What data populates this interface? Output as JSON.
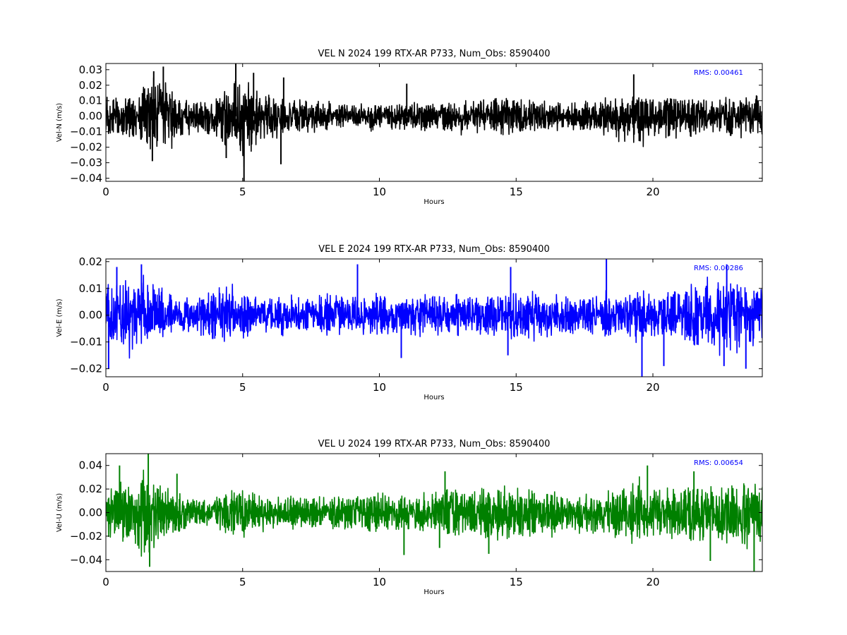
{
  "chart_data": [
    {
      "type": "line",
      "title": "VEL N 2024 199 RTX-AR  P733, Num_Obs: 8590400",
      "xlabel": "Hours",
      "ylabel": "Vel-N (m/s)",
      "xlim": [
        0,
        24
      ],
      "ylim": [
        -0.042,
        0.034
      ],
      "x_ticks": [
        0,
        5,
        10,
        15,
        20
      ],
      "x_tick_labels": [
        "0",
        "5",
        "10",
        "15",
        "20"
      ],
      "y_ticks": [
        -0.04,
        -0.03,
        -0.02,
        -0.01,
        0.0,
        0.01,
        0.02,
        0.03
      ],
      "y_tick_labels": [
        "−0.04",
        "−0.03",
        "−0.02",
        "−0.01",
        "0.00",
        "0.01",
        "0.02",
        "0.03"
      ],
      "annotation": "RMS:  0.00461",
      "annotation_color": "#0000ff",
      "color": "#000000",
      "grid": false,
      "envelope": {
        "hours": [
          0,
          0.5,
          1.0,
          1.5,
          1.8,
          2.0,
          2.3,
          2.7,
          3.0,
          3.5,
          4.0,
          4.3,
          4.6,
          4.8,
          5.0,
          5.2,
          5.4,
          5.7,
          6.0,
          6.5,
          7.0,
          8.0,
          9.0,
          10.0,
          11.0,
          12.0,
          13.0,
          14.0,
          14.5,
          15.0,
          16.0,
          17.0,
          17.5,
          18.0,
          19.0,
          19.5,
          20.0,
          21.0,
          22.0,
          23.0,
          24.0
        ],
        "upper": [
          0.012,
          0.013,
          0.014,
          0.017,
          0.022,
          0.023,
          0.02,
          0.012,
          0.01,
          0.009,
          0.01,
          0.014,
          0.019,
          0.024,
          0.025,
          0.022,
          0.015,
          0.013,
          0.014,
          0.011,
          0.01,
          0.009,
          0.008,
          0.007,
          0.008,
          0.009,
          0.009,
          0.01,
          0.012,
          0.011,
          0.009,
          0.008,
          0.009,
          0.011,
          0.013,
          0.014,
          0.012,
          0.011,
          0.012,
          0.013,
          0.014
        ],
        "lower": [
          -0.012,
          -0.014,
          -0.016,
          -0.019,
          -0.022,
          -0.023,
          -0.02,
          -0.012,
          -0.011,
          -0.01,
          -0.011,
          -0.016,
          -0.022,
          -0.027,
          -0.032,
          -0.028,
          -0.018,
          -0.015,
          -0.014,
          -0.012,
          -0.01,
          -0.009,
          -0.008,
          -0.007,
          -0.008,
          -0.009,
          -0.009,
          -0.01,
          -0.012,
          -0.011,
          -0.009,
          -0.008,
          -0.01,
          -0.012,
          -0.014,
          -0.015,
          -0.013,
          -0.012,
          -0.012,
          -0.013,
          -0.014
        ]
      },
      "spikes": [
        {
          "hour": 2.1,
          "value": 0.032
        },
        {
          "hour": 1.75,
          "value": 0.029
        },
        {
          "hour": 4.75,
          "value": 0.034
        },
        {
          "hour": 5.05,
          "value": -0.042
        },
        {
          "hour": 4.4,
          "value": -0.027
        },
        {
          "hour": 5.4,
          "value": 0.028
        },
        {
          "hour": 6.4,
          "value": -0.031
        },
        {
          "hour": 6.5,
          "value": 0.025
        },
        {
          "hour": 1.7,
          "value": -0.029
        },
        {
          "hour": 19.3,
          "value": 0.027
        },
        {
          "hour": 11.0,
          "value": 0.021
        }
      ]
    },
    {
      "type": "line",
      "title": "VEL E 2024 199 RTX-AR  P733, Num_Obs: 8590400",
      "xlabel": "Hours",
      "ylabel": "Vel-E (m/s)",
      "xlim": [
        0,
        24
      ],
      "ylim": [
        -0.023,
        0.021
      ],
      "x_ticks": [
        0,
        5,
        10,
        15,
        20
      ],
      "x_tick_labels": [
        "0",
        "5",
        "10",
        "15",
        "20"
      ],
      "y_ticks": [
        -0.02,
        -0.01,
        0.0,
        0.01,
        0.02
      ],
      "y_tick_labels": [
        "−0.02",
        "−0.01",
        "0.00",
        "0.01",
        "0.02"
      ],
      "annotation": "RMS:  0.00286",
      "annotation_color": "#0000ff",
      "color": "#0000ff",
      "grid": false,
      "envelope": {
        "hours": [
          0,
          0.5,
          1.0,
          1.5,
          2.0,
          2.3,
          2.7,
          3.0,
          3.5,
          4.0,
          4.5,
          5.0,
          5.5,
          6.0,
          7.0,
          8.0,
          9.0,
          10.0,
          11.0,
          12.0,
          13.0,
          14.0,
          15.0,
          16.0,
          17.0,
          18.0,
          19.0,
          20.0,
          21.0,
          22.0,
          22.5,
          23.0,
          24.0
        ],
        "upper": [
          0.011,
          0.012,
          0.012,
          0.011,
          0.01,
          0.007,
          0.006,
          0.006,
          0.007,
          0.009,
          0.01,
          0.008,
          0.006,
          0.007,
          0.007,
          0.007,
          0.007,
          0.007,
          0.007,
          0.007,
          0.007,
          0.007,
          0.008,
          0.008,
          0.007,
          0.007,
          0.008,
          0.008,
          0.009,
          0.012,
          0.013,
          0.012,
          0.01
        ],
        "lower": [
          -0.011,
          -0.012,
          -0.012,
          -0.011,
          -0.01,
          -0.007,
          -0.006,
          -0.006,
          -0.007,
          -0.009,
          -0.01,
          -0.008,
          -0.006,
          -0.007,
          -0.007,
          -0.007,
          -0.007,
          -0.007,
          -0.007,
          -0.007,
          -0.007,
          -0.007,
          -0.008,
          -0.008,
          -0.007,
          -0.007,
          -0.008,
          -0.008,
          -0.009,
          -0.012,
          -0.013,
          -0.012,
          -0.01
        ]
      },
      "spikes": [
        {
          "hour": 18.3,
          "value": 0.021
        },
        {
          "hour": 19.6,
          "value": -0.023
        },
        {
          "hour": 9.2,
          "value": 0.019
        },
        {
          "hour": 22.7,
          "value": 0.019
        },
        {
          "hour": 14.8,
          "value": 0.018
        },
        {
          "hour": 1.3,
          "value": 0.019
        },
        {
          "hour": 0.1,
          "value": -0.02
        },
        {
          "hour": 20.4,
          "value": -0.019
        },
        {
          "hour": 23.4,
          "value": -0.02
        },
        {
          "hour": 22.6,
          "value": -0.019
        },
        {
          "hour": 0.4,
          "value": 0.018
        },
        {
          "hour": 10.8,
          "value": -0.016
        },
        {
          "hour": 14.7,
          "value": -0.015
        }
      ]
    },
    {
      "type": "line",
      "title": "VEL U 2024 199 RTX-AR  P733, Num_Obs: 8590400",
      "xlabel": "Hours",
      "ylabel": "Vel-U (m/s)",
      "xlim": [
        0,
        24
      ],
      "ylim": [
        -0.05,
        0.05
      ],
      "x_ticks": [
        0,
        5,
        10,
        15,
        20
      ],
      "x_tick_labels": [
        "0",
        "5",
        "10",
        "15",
        "20"
      ],
      "y_ticks": [
        -0.04,
        -0.02,
        0.0,
        0.02,
        0.04
      ],
      "y_tick_labels": [
        "−0.04",
        "−0.02",
        "0.00",
        "0.02",
        "0.04"
      ],
      "annotation": "RMS:  0.00654",
      "annotation_color": "#0000ff",
      "color": "#008000",
      "grid": false,
      "envelope": {
        "hours": [
          0,
          0.5,
          1.0,
          1.5,
          2.0,
          2.5,
          3.0,
          3.5,
          4.0,
          4.5,
          5.0,
          5.5,
          6.0,
          7.0,
          8.0,
          9.0,
          10.0,
          11.0,
          12.0,
          12.5,
          13.0,
          14.0,
          15.0,
          16.0,
          17.0,
          18.0,
          18.5,
          19.0,
          19.5,
          20.0,
          21.0,
          22.0,
          23.0,
          23.5,
          24.0
        ],
        "upper": [
          0.02,
          0.022,
          0.023,
          0.03,
          0.025,
          0.015,
          0.012,
          0.01,
          0.012,
          0.017,
          0.02,
          0.014,
          0.012,
          0.013,
          0.012,
          0.013,
          0.015,
          0.014,
          0.016,
          0.022,
          0.018,
          0.02,
          0.022,
          0.018,
          0.014,
          0.016,
          0.019,
          0.022,
          0.026,
          0.021,
          0.019,
          0.024,
          0.022,
          0.026,
          0.024
        ],
        "lower": [
          -0.02,
          -0.022,
          -0.025,
          -0.033,
          -0.026,
          -0.016,
          -0.012,
          -0.01,
          -0.012,
          -0.017,
          -0.02,
          -0.015,
          -0.013,
          -0.013,
          -0.012,
          -0.014,
          -0.016,
          -0.015,
          -0.017,
          -0.022,
          -0.018,
          -0.02,
          -0.022,
          -0.019,
          -0.015,
          -0.017,
          -0.02,
          -0.024,
          -0.027,
          -0.022,
          -0.02,
          -0.025,
          -0.024,
          -0.03,
          -0.026
        ]
      },
      "spikes": [
        {
          "hour": 1.55,
          "value": 0.05
        },
        {
          "hour": 1.6,
          "value": -0.046
        },
        {
          "hour": 23.7,
          "value": -0.05
        },
        {
          "hour": 19.8,
          "value": 0.04
        },
        {
          "hour": 22.1,
          "value": -0.041
        },
        {
          "hour": 0.5,
          "value": 0.04
        },
        {
          "hour": 12.4,
          "value": 0.035
        },
        {
          "hour": 10.9,
          "value": -0.036
        },
        {
          "hour": 21.5,
          "value": 0.035
        },
        {
          "hour": 14.0,
          "value": -0.035
        },
        {
          "hour": 2.6,
          "value": 0.033
        },
        {
          "hour": 12.2,
          "value": -0.03
        }
      ]
    }
  ]
}
